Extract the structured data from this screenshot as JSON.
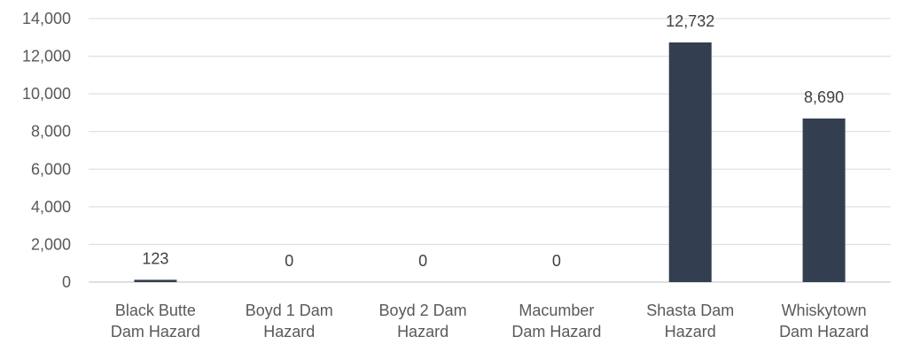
{
  "chart_data": {
    "type": "bar",
    "title": "",
    "xlabel": "",
    "ylabel": "",
    "categories": [
      [
        "Black Butte",
        "Dam Hazard"
      ],
      [
        "Boyd 1 Dam",
        "Hazard"
      ],
      [
        "Boyd 2 Dam",
        "Hazard"
      ],
      [
        "Macumber",
        "Dam Hazard"
      ],
      [
        "Shasta Dam",
        "Hazard"
      ],
      [
        "Whiskytown",
        "Dam Hazard"
      ]
    ],
    "values": [
      123,
      0,
      0,
      0,
      12732,
      8690
    ],
    "data_labels": [
      "123",
      "0",
      "0",
      "0",
      "12,732",
      "8,690"
    ],
    "ylim": [
      0,
      14000
    ],
    "yticks": [
      0,
      2000,
      4000,
      6000,
      8000,
      10000,
      12000,
      14000
    ],
    "ytick_labels": [
      "0",
      "2,000",
      "4,000",
      "6,000",
      "8,000",
      "10,000",
      "12,000",
      "14,000"
    ],
    "grid": true,
    "legend": "none",
    "colors": {
      "bar": "#333f50",
      "grid": "#d9d9d9",
      "axis": "#bfbfbf",
      "text": "#595959"
    }
  }
}
